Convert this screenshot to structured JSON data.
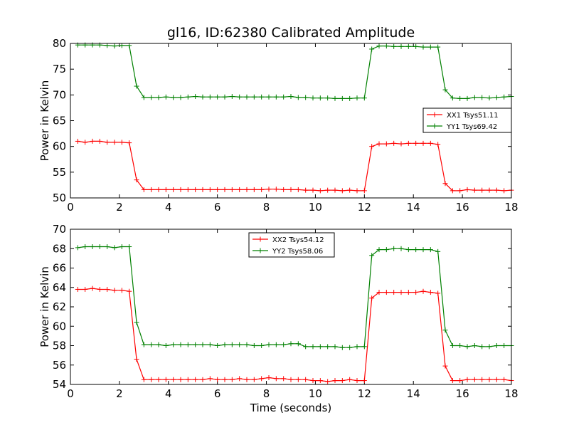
{
  "chart_data": [
    {
      "type": "line",
      "title": "gl16, ID:62380 Calibrated Amplitude",
      "xlabel": "",
      "ylabel": "Power in Kelvin",
      "xlim": [
        0,
        18
      ],
      "ylim": [
        50,
        80
      ],
      "xticks": [
        "0",
        "2",
        "4",
        "6",
        "8",
        "10",
        "12",
        "14",
        "16",
        "18"
      ],
      "yticks": [
        "50",
        "55",
        "60",
        "65",
        "70",
        "75",
        "80"
      ],
      "legend_position": "right",
      "x": [
        0.3,
        0.6,
        0.9,
        1.2,
        1.5,
        1.8,
        2.1,
        2.4,
        2.7,
        3.0,
        3.3,
        3.6,
        3.9,
        4.2,
        4.5,
        4.8,
        5.1,
        5.4,
        5.7,
        6.0,
        6.3,
        6.6,
        6.9,
        7.2,
        7.5,
        7.8,
        8.1,
        8.4,
        8.7,
        9.0,
        9.3,
        9.6,
        9.9,
        10.2,
        10.5,
        10.8,
        11.1,
        11.4,
        11.7,
        12.0,
        12.3,
        12.6,
        12.9,
        13.2,
        13.5,
        13.8,
        14.1,
        14.4,
        14.7,
        15.0,
        15.3,
        15.6,
        15.9,
        16.2,
        16.5,
        16.8,
        17.1,
        17.4,
        17.7,
        18.0
      ],
      "series": [
        {
          "name": "XX1 Tsys51.11",
          "color": "#ff0000",
          "values": [
            61.0,
            60.8,
            61.0,
            61.0,
            60.8,
            60.8,
            60.8,
            60.7,
            53.5,
            51.6,
            51.6,
            51.6,
            51.6,
            51.6,
            51.6,
            51.6,
            51.6,
            51.6,
            51.6,
            51.6,
            51.6,
            51.6,
            51.6,
            51.6,
            51.6,
            51.6,
            51.7,
            51.7,
            51.6,
            51.6,
            51.6,
            51.5,
            51.5,
            51.4,
            51.5,
            51.5,
            51.4,
            51.5,
            51.4,
            51.4,
            60.0,
            60.5,
            60.5,
            60.6,
            60.5,
            60.6,
            60.6,
            60.6,
            60.6,
            60.4,
            52.8,
            51.4,
            51.4,
            51.6,
            51.5,
            51.5,
            51.5,
            51.5,
            51.4,
            51.5
          ]
        },
        {
          "name": "YY1 Tsys69.42",
          "color": "#008000",
          "values": [
            79.7,
            79.7,
            79.7,
            79.7,
            79.6,
            79.5,
            79.6,
            79.6,
            71.7,
            69.5,
            69.5,
            69.5,
            69.6,
            69.5,
            69.5,
            69.6,
            69.7,
            69.6,
            69.6,
            69.6,
            69.6,
            69.7,
            69.6,
            69.6,
            69.6,
            69.6,
            69.6,
            69.6,
            69.6,
            69.7,
            69.5,
            69.5,
            69.4,
            69.4,
            69.4,
            69.3,
            69.3,
            69.3,
            69.4,
            69.4,
            78.9,
            79.5,
            79.5,
            79.4,
            79.4,
            79.4,
            79.4,
            79.3,
            79.3,
            79.3,
            71.0,
            69.4,
            69.3,
            69.3,
            69.5,
            69.5,
            69.4,
            69.5,
            69.6,
            69.7
          ]
        }
      ]
    },
    {
      "type": "line",
      "title": "",
      "xlabel": "Time (seconds)",
      "ylabel": "Power in Kelvin",
      "xlim": [
        0,
        18
      ],
      "ylim": [
        54,
        70
      ],
      "xticks": [
        "0",
        "2",
        "4",
        "6",
        "8",
        "10",
        "12",
        "14",
        "16",
        "18"
      ],
      "yticks": [
        "54",
        "56",
        "58",
        "60",
        "62",
        "64",
        "66",
        "68",
        "70"
      ],
      "legend_position": "top-center",
      "x": [
        0.3,
        0.6,
        0.9,
        1.2,
        1.5,
        1.8,
        2.1,
        2.4,
        2.7,
        3.0,
        3.3,
        3.6,
        3.9,
        4.2,
        4.5,
        4.8,
        5.1,
        5.4,
        5.7,
        6.0,
        6.3,
        6.6,
        6.9,
        7.2,
        7.5,
        7.8,
        8.1,
        8.4,
        8.7,
        9.0,
        9.3,
        9.6,
        9.9,
        10.2,
        10.5,
        10.8,
        11.1,
        11.4,
        11.7,
        12.0,
        12.3,
        12.6,
        12.9,
        13.2,
        13.5,
        13.8,
        14.1,
        14.4,
        14.7,
        15.0,
        15.3,
        15.6,
        15.9,
        16.2,
        16.5,
        16.8,
        17.1,
        17.4,
        17.7,
        18.0
      ],
      "series": [
        {
          "name": "XX2 Tsys54.12",
          "color": "#ff0000",
          "values": [
            63.8,
            63.8,
            63.9,
            63.8,
            63.8,
            63.7,
            63.7,
            63.6,
            56.6,
            54.5,
            54.5,
            54.5,
            54.5,
            54.5,
            54.5,
            54.5,
            54.5,
            54.5,
            54.6,
            54.5,
            54.5,
            54.5,
            54.6,
            54.5,
            54.5,
            54.6,
            54.7,
            54.6,
            54.6,
            54.5,
            54.5,
            54.5,
            54.4,
            54.4,
            54.3,
            54.4,
            54.4,
            54.5,
            54.4,
            54.4,
            62.9,
            63.5,
            63.5,
            63.5,
            63.5,
            63.5,
            63.5,
            63.6,
            63.5,
            63.4,
            55.9,
            54.4,
            54.4,
            54.5,
            54.5,
            54.5,
            54.5,
            54.5,
            54.5,
            54.4
          ]
        },
        {
          "name": "YY2 Tsys58.06",
          "color": "#008000",
          "values": [
            68.1,
            68.2,
            68.2,
            68.2,
            68.2,
            68.1,
            68.2,
            68.2,
            60.4,
            58.1,
            58.1,
            58.1,
            58.0,
            58.1,
            58.1,
            58.1,
            58.1,
            58.1,
            58.1,
            58.0,
            58.1,
            58.1,
            58.1,
            58.1,
            58.0,
            58.0,
            58.1,
            58.1,
            58.1,
            58.2,
            58.2,
            57.9,
            57.9,
            57.9,
            57.9,
            57.9,
            57.8,
            57.8,
            57.9,
            57.9,
            67.3,
            67.9,
            67.9,
            68.0,
            68.0,
            67.9,
            67.9,
            67.9,
            67.9,
            67.7,
            59.6,
            58.0,
            58.0,
            57.9,
            58.0,
            57.9,
            57.9,
            58.0,
            58.0,
            58.0
          ]
        }
      ]
    }
  ]
}
